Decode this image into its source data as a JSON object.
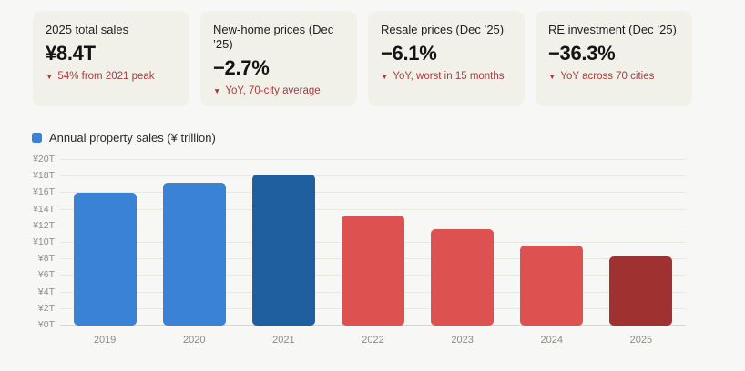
{
  "page": {
    "background": "#f7f7f5",
    "card_background": "#f1f0e9",
    "note_color": "#a53d3d"
  },
  "icons": {
    "down_triangle": "▼"
  },
  "cards": [
    {
      "title": "2025 total sales",
      "value": "¥8.4T",
      "note": "54% from 2021 peak"
    },
    {
      "title": "New-home prices (Dec ’25)",
      "value": "−2.7%",
      "note": "YoY, 70-city average"
    },
    {
      "title": "Resale prices (Dec ’25)",
      "value": "−6.1%",
      "note": "YoY, worst in 15 months"
    },
    {
      "title": "RE investment (Dec ’25)",
      "value": "−36.3%",
      "note": "YoY across 70 cities"
    }
  ],
  "legend": {
    "label": "Annual property sales (¥ trillion)",
    "swatch_color": "#3a82d6"
  },
  "chart_data": {
    "type": "bar",
    "title": "Annual property sales (¥ trillion)",
    "categories": [
      "2019",
      "2020",
      "2021",
      "2022",
      "2023",
      "2024",
      "2025"
    ],
    "values": [
      16.0,
      17.3,
      18.2,
      13.3,
      11.7,
      9.7,
      8.4
    ],
    "bar_colors": [
      "#3a82d6",
      "#3a82d6",
      "#1f5fa0",
      "#dd5151",
      "#dd5151",
      "#dd5151",
      "#a03131"
    ],
    "xlabel": "",
    "ylabel": "",
    "ylim": [
      0,
      20
    ],
    "yticks": [
      "¥0T",
      "¥2T",
      "¥4T",
      "¥6T",
      "¥8T",
      "¥10T",
      "¥12T",
      "¥14T",
      "¥16T",
      "¥18T",
      "¥20T"
    ],
    "grid": true,
    "legend_position": "top-left"
  }
}
